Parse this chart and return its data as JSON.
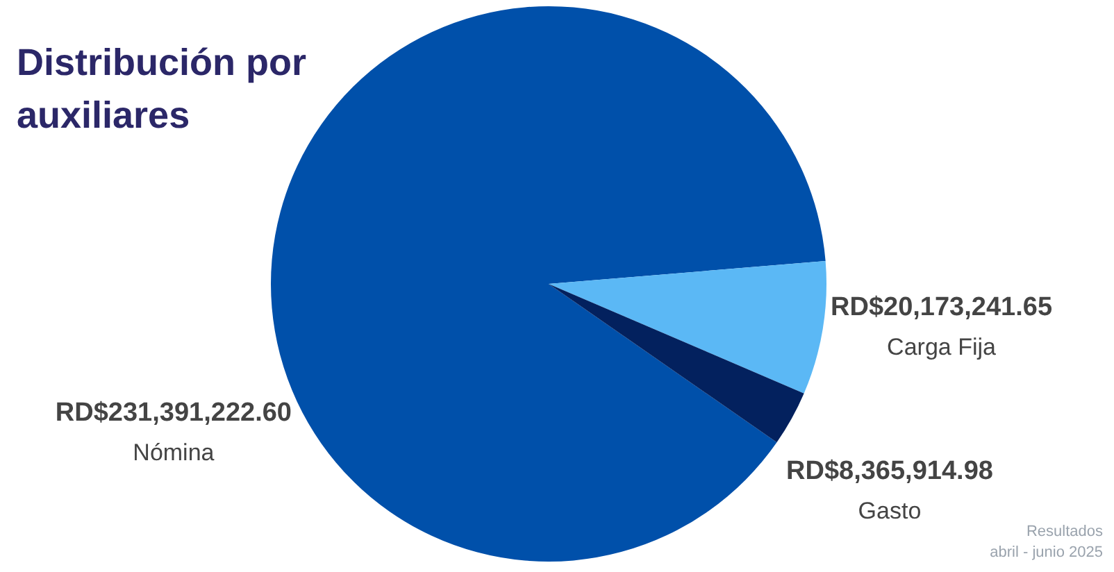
{
  "chart_data": {
    "type": "pie",
    "title": "Distribución por auxiliares",
    "categories": [
      "Nómina",
      "Carga Fija",
      "Gasto"
    ],
    "values": [
      231391222.6,
      20173241.65,
      8365914.98
    ],
    "colors": [
      "#0050aa",
      "#5bb8f5",
      "#03215e"
    ],
    "value_labels": [
      "RD$231,391,222.60",
      "RD$20,173,241.65",
      "RD$8,365,914.98"
    ],
    "annotations": [
      "Resultados",
      "abril - junio 2025"
    ]
  }
}
